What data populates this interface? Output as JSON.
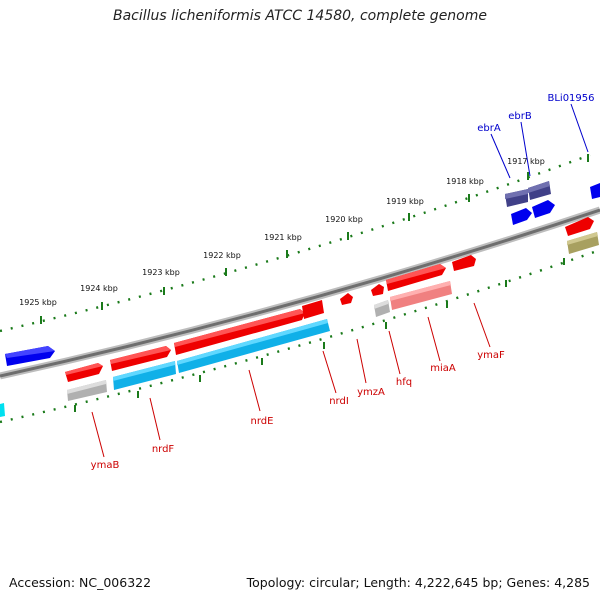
{
  "title": "Bacillus licheniformis ATCC 14580, complete genome",
  "footer": {
    "accession": "Accession: NC_006322",
    "topology": "Topology: circular; Length: 4,222,645 bp; Genes: 4,285"
  },
  "scale_labels": [
    "1917 kbp",
    "1918 kbp",
    "1919 kbp",
    "1920 kbp",
    "1921 kbp",
    "1922 kbp",
    "1923 kbp",
    "1924 kbp",
    "1925 kbp"
  ],
  "gene_labels": [
    {
      "text": "BLi01956",
      "color": "#0000cc"
    },
    {
      "text": "ebrB",
      "color": "#0000cc"
    },
    {
      "text": "ebrA",
      "color": "#0000cc"
    },
    {
      "text": "ymaF",
      "color": "#cc0000"
    },
    {
      "text": "miaA",
      "color": "#cc0000"
    },
    {
      "text": "hfq",
      "color": "#cc0000"
    },
    {
      "text": "ymzA",
      "color": "#cc0000"
    },
    {
      "text": "nrdI",
      "color": "#cc0000"
    },
    {
      "text": "nrdE",
      "color": "#cc0000"
    },
    {
      "text": "nrdF",
      "color": "#cc0000"
    },
    {
      "text": "ymaB",
      "color": "#cc0000"
    }
  ],
  "colors": {
    "forward_gene": "#ee0000",
    "reverse_gene": "#0000ee",
    "cog_cyan": "#10b0e8",
    "cog_gray": "#b8b8b8",
    "cog_pink": "#f08080",
    "cog_navy": "#404088",
    "cog_olive": "#a8a060",
    "backbone": "#7a7a7a",
    "tick_green": "#1a7a1a"
  }
}
